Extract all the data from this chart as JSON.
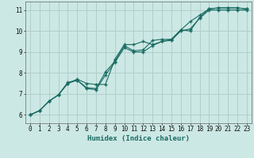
{
  "title": "",
  "xlabel": "Humidex (Indice chaleur)",
  "ylabel": "",
  "background_color": "#cce8e4",
  "grid_color": "#b0ceca",
  "line_color": "#1a6b63",
  "xlim": [
    -0.5,
    23.5
  ],
  "ylim": [
    5.6,
    11.4
  ],
  "xticks": [
    0,
    1,
    2,
    3,
    4,
    5,
    6,
    7,
    8,
    9,
    10,
    11,
    12,
    13,
    14,
    15,
    16,
    17,
    18,
    19,
    20,
    21,
    22,
    23
  ],
  "yticks": [
    6,
    7,
    8,
    9,
    10,
    11
  ],
  "line1_x": [
    0,
    1,
    2,
    3,
    4,
    5,
    6,
    7,
    8,
    9,
    10,
    11,
    12,
    13,
    14,
    15,
    16,
    17,
    18,
    19,
    20,
    21,
    22,
    23
  ],
  "line1_y": [
    6.0,
    6.2,
    6.65,
    6.95,
    7.5,
    7.7,
    7.5,
    7.45,
    7.45,
    8.65,
    9.35,
    9.35,
    9.5,
    9.35,
    9.5,
    9.6,
    10.05,
    10.45,
    10.75,
    11.05,
    11.1,
    11.1,
    11.1,
    11.05
  ],
  "line2_x": [
    0,
    1,
    2,
    3,
    4,
    5,
    6,
    7,
    8,
    9,
    10,
    11,
    12,
    13,
    14,
    15,
    16,
    17,
    18,
    19,
    20,
    21,
    22,
    23
  ],
  "line2_y": [
    6.0,
    6.2,
    6.65,
    6.95,
    7.55,
    7.65,
    7.3,
    7.25,
    8.05,
    8.55,
    9.3,
    9.05,
    9.1,
    9.55,
    9.6,
    9.6,
    10.05,
    10.0,
    10.65,
    11.05,
    11.1,
    11.1,
    11.1,
    11.05
  ],
  "line3_x": [
    0,
    1,
    2,
    3,
    4,
    5,
    6,
    7,
    8,
    9,
    10,
    11,
    12,
    13,
    14,
    15,
    16,
    17,
    18,
    19,
    20,
    21,
    22,
    23
  ],
  "line3_y": [
    6.0,
    6.2,
    6.65,
    6.95,
    7.5,
    7.65,
    7.25,
    7.2,
    7.9,
    8.5,
    9.2,
    9.0,
    9.0,
    9.3,
    9.5,
    9.55,
    10.0,
    10.1,
    10.6,
    11.0,
    11.0,
    11.0,
    11.0,
    11.0
  ]
}
